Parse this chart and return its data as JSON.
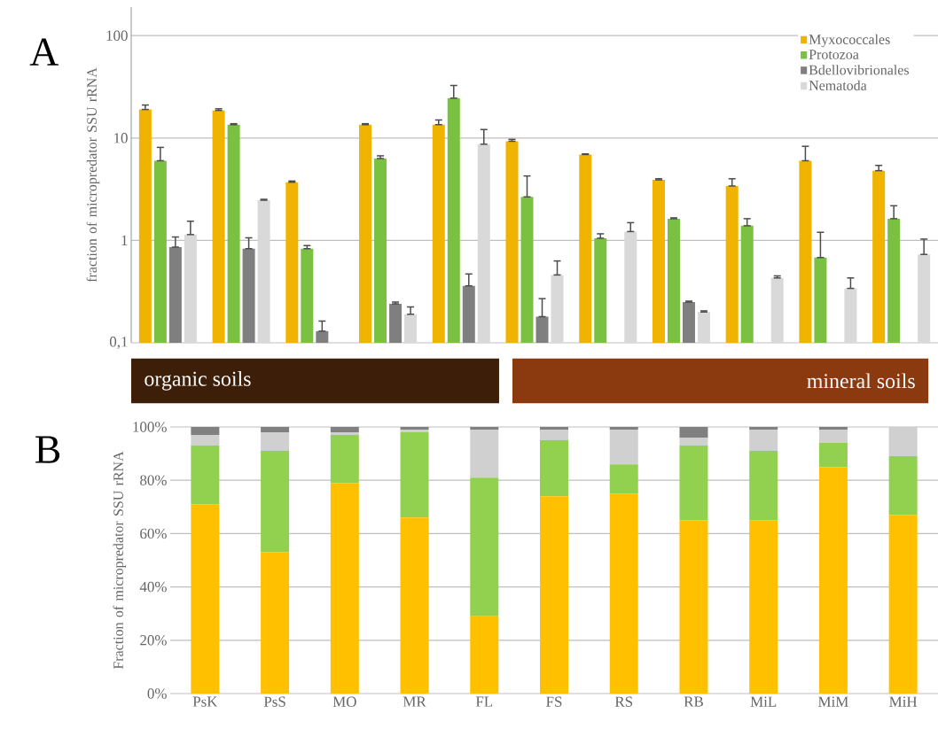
{
  "chart_data": [
    {
      "type": "bar",
      "title": "A",
      "ylabel": "fraction of micropredator SSU rRNA",
      "categories": [
        null,
        null,
        null,
        null,
        null,
        null,
        null,
        null,
        null,
        null,
        null
      ],
      "log": true,
      "ylim": [
        0.1,
        190
      ],
      "yticks": [
        {
          "value": 0.1,
          "label": "0,1"
        },
        1,
        10,
        100
      ],
      "grid": "y",
      "legend": "top right",
      "tick_labels": "y",
      "series": [
        {
          "name": "Myxococcales",
          "color": "#f0b400",
          "values": [
            19,
            18.6,
            3.7,
            13.5,
            13.5,
            9.3,
            6.9,
            3.9,
            3.4,
            6,
            4.8
          ],
          "errors": [
            [
              19,
              21
            ],
            [
              18.6,
              19.3
            ],
            [
              3.7,
              3.8
            ],
            [
              13.5,
              13.8
            ],
            [
              13.5,
              15
            ],
            [
              9.3,
              9.7
            ],
            [
              6.9,
              7
            ],
            [
              3.9,
              4
            ],
            [
              3.4,
              4
            ],
            [
              6,
              8.3
            ],
            [
              4.8,
              5.4
            ]
          ]
        },
        {
          "name": "Protozoa",
          "color": "#7ac142",
          "values": [
            6,
            13.5,
            0.83,
            6.3,
            24.5,
            2.66,
            1.05,
            1.63,
            1.39,
            0.68,
            1.63
          ],
          "errors": [
            [
              6,
              8.1
            ],
            [
              13.5,
              13.8
            ],
            [
              0.83,
              0.89
            ],
            [
              6.3,
              6.7
            ],
            [
              24.5,
              32.6
            ],
            [
              2.66,
              4.26
            ],
            [
              1.05,
              1.16
            ],
            [
              1.63,
              1.66
            ],
            [
              1.39,
              1.63
            ],
            [
              0.68,
              1.2
            ],
            [
              1.63,
              2.18
            ]
          ]
        },
        {
          "name": "Bdellovibrionales",
          "color": "#7f7f7f",
          "values": [
            0.86,
            0.83,
            0.13,
            0.24,
            0.36,
            0.18,
            null,
            0.25,
            null,
            null,
            null
          ],
          "errors": [
            [
              0.86,
              1.08
            ],
            [
              0.83,
              1.06
            ],
            [
              0.13,
              0.163
            ],
            [
              0.24,
              0.25
            ],
            [
              0.36,
              0.47
            ],
            [
              0.18,
              0.27
            ],
            null,
            [
              0.25,
              0.255
            ],
            null,
            null,
            null
          ]
        },
        {
          "name": "Nematoda",
          "color": "#d9d9d9",
          "values": [
            1.14,
            2.47,
            null,
            0.19,
            8.7,
            0.46,
            1.22,
            0.2,
            0.43,
            0.34,
            0.73
          ],
          "errors": [
            [
              1.14,
              1.54
            ],
            [
              2.47,
              2.52
            ],
            null,
            [
              0.19,
              0.224
            ],
            [
              8.7,
              12.1
            ],
            [
              0.46,
              0.63
            ],
            [
              1.22,
              1.49
            ],
            [
              0.2,
              0.205
            ],
            [
              0.43,
              0.45
            ],
            [
              0.34,
              0.43
            ],
            [
              0.73,
              1.03
            ]
          ]
        }
      ],
      "annotations": [
        "organic soils",
        "mineral soils"
      ]
    },
    {
      "type": "bar",
      "title": "B",
      "ylabel": "Fraction of micropredator SSU rRNA",
      "stacked": true,
      "categories": [
        "PsK",
        "PsS",
        "MO",
        "MR",
        "FL",
        "FS",
        "RS",
        "RB",
        "MiL",
        "MiM",
        "MiH"
      ],
      "ylim": [
        0,
        100
      ],
      "yticks": [
        {
          "value": 0,
          "label": "0%"
        },
        {
          "value": 20,
          "label": "20%"
        },
        {
          "value": 40,
          "label": "40%"
        },
        {
          "value": 60,
          "label": "60%"
        },
        {
          "value": 80,
          "label": "80%"
        },
        {
          "value": 100,
          "label": "100%"
        }
      ],
      "grid": "y",
      "series": [
        {
          "color": "#ffc000",
          "values": [
            71,
            53,
            79,
            66,
            29,
            74,
            75,
            65,
            65,
            85,
            67
          ]
        },
        {
          "color": "#92d050",
          "values": [
            22,
            38,
            18,
            32,
            52,
            21,
            11,
            28,
            26,
            9,
            22
          ]
        },
        {
          "color": "#d0d0d0",
          "values": [
            4,
            7,
            1,
            1,
            18,
            4,
            13,
            3,
            8,
            5,
            11
          ]
        },
        {
          "color": "#808080",
          "values": [
            3,
            2,
            2,
            1,
            1,
            1,
            1,
            4,
            1,
            1,
            0
          ]
        }
      ]
    }
  ]
}
